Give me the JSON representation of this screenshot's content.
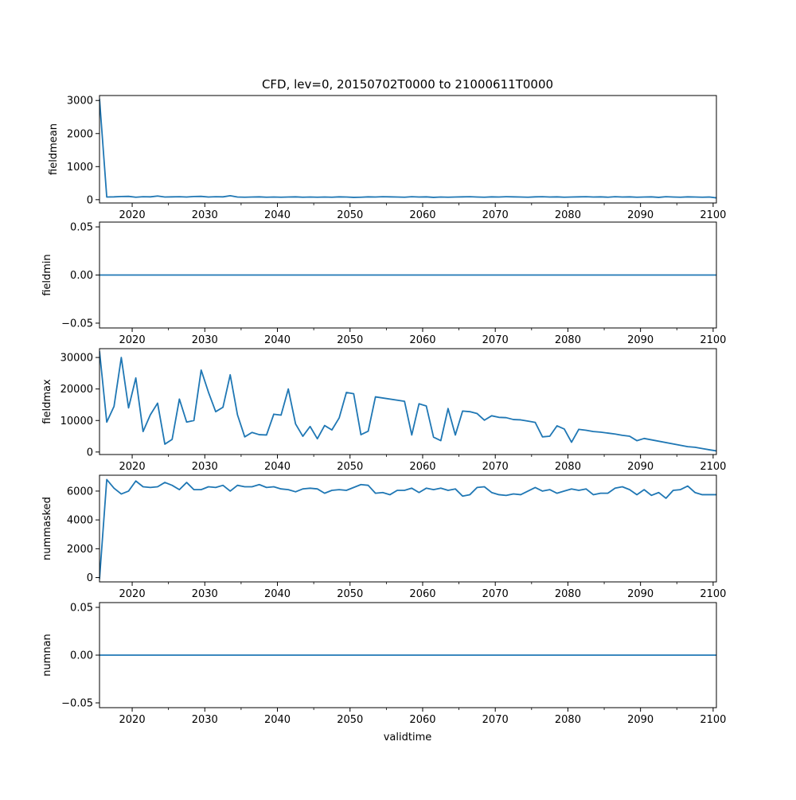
{
  "figure": {
    "title": "CFD, lev=0, 20150702T0000 to 21000611T0000",
    "xlabel": "validtime",
    "line_color": "#1f77b4"
  },
  "chart_data": [
    {
      "type": "line",
      "ylabel": "fieldmean",
      "xlim": [
        2015.5,
        2100.45
      ],
      "ylim": [
        -100,
        3150
      ],
      "xticks": [
        2020,
        2030,
        2040,
        2050,
        2060,
        2070,
        2080,
        2090,
        2100
      ],
      "xtick_labels": [
        "2020",
        "2030",
        "2040",
        "2050",
        "2060",
        "2070",
        "2080",
        "2090",
        "2100"
      ],
      "yticks": [
        0,
        1000,
        2000,
        3000
      ],
      "ytick_labels": [
        "0",
        "1000",
        "2000",
        "3000"
      ],
      "x": [
        2015.5,
        2016.5,
        2017.5,
        2018.5,
        2019.5,
        2020.5,
        2021.5,
        2022.5,
        2023.5,
        2024.5,
        2025.5,
        2026.5,
        2027.5,
        2028.5,
        2029.5,
        2030.5,
        2031.5,
        2032.5,
        2033.5,
        2034.5,
        2035.5,
        2036.5,
        2037.5,
        2038.5,
        2039.5,
        2040.5,
        2041.5,
        2042.5,
        2043.5,
        2044.5,
        2045.5,
        2046.5,
        2047.5,
        2048.5,
        2049.5,
        2050.5,
        2051.5,
        2052.5,
        2053.5,
        2054.5,
        2055.5,
        2056.5,
        2057.5,
        2058.5,
        2059.5,
        2060.5,
        2061.5,
        2062.5,
        2063.5,
        2064.5,
        2065.5,
        2066.5,
        2067.5,
        2068.5,
        2069.5,
        2070.5,
        2071.5,
        2072.5,
        2073.5,
        2074.5,
        2075.5,
        2076.5,
        2077.5,
        2078.5,
        2079.5,
        2080.5,
        2081.5,
        2082.5,
        2083.5,
        2084.5,
        2085.5,
        2086.5,
        2087.5,
        2088.5,
        2089.5,
        2090.5,
        2091.5,
        2092.5,
        2093.5,
        2094.5,
        2095.5,
        2096.5,
        2097.5,
        2098.5,
        2099.5,
        2100.45
      ],
      "y": [
        3050,
        80,
        85,
        95,
        100,
        75,
        90,
        85,
        110,
        80,
        85,
        90,
        80,
        95,
        100,
        80,
        90,
        85,
        120,
        80,
        75,
        80,
        85,
        75,
        80,
        75,
        80,
        85,
        75,
        80,
        75,
        80,
        75,
        85,
        80,
        70,
        75,
        85,
        80,
        90,
        85,
        80,
        75,
        90,
        80,
        85,
        70,
        80,
        75,
        80,
        85,
        90,
        80,
        75,
        85,
        80,
        90,
        85,
        80,
        75,
        85,
        90,
        80,
        85,
        75,
        80,
        85,
        90,
        80,
        85,
        75,
        90,
        80,
        85,
        75,
        80,
        85,
        70,
        90,
        80,
        75,
        85,
        80,
        75,
        80,
        55
      ]
    },
    {
      "type": "line",
      "ylabel": "fieldmin",
      "xlim": [
        2015.5,
        2100.45
      ],
      "ylim": [
        -0.055,
        0.055
      ],
      "xticks": [
        2020,
        2030,
        2040,
        2050,
        2060,
        2070,
        2080,
        2090,
        2100
      ],
      "xtick_labels": [
        "2020",
        "2030",
        "2040",
        "2050",
        "2060",
        "2070",
        "2080",
        "2090",
        "2100"
      ],
      "yticks": [
        -0.05,
        0,
        0.05
      ],
      "ytick_labels": [
        "−0.05",
        "0.00",
        "0.05"
      ],
      "x": [
        2015.5,
        2100.45
      ],
      "y": [
        0,
        0
      ]
    },
    {
      "type": "line",
      "ylabel": "fieldmax",
      "xlim": [
        2015.5,
        2100.45
      ],
      "ylim": [
        -800,
        32800
      ],
      "xticks": [
        2020,
        2030,
        2040,
        2050,
        2060,
        2070,
        2080,
        2090,
        2100
      ],
      "xtick_labels": [
        "2020",
        "2030",
        "2040",
        "2050",
        "2060",
        "2070",
        "2080",
        "2090",
        "2100"
      ],
      "yticks": [
        0,
        10000,
        20000,
        30000
      ],
      "ytick_labels": [
        "0",
        "10000",
        "20000",
        "30000"
      ],
      "x": [
        2015.5,
        2016.5,
        2017.5,
        2018.5,
        2019.5,
        2020.5,
        2021.5,
        2022.5,
        2023.5,
        2024.5,
        2025.5,
        2026.5,
        2027.5,
        2028.5,
        2029.5,
        2030.5,
        2031.5,
        2032.5,
        2033.5,
        2034.5,
        2035.5,
        2036.5,
        2037.5,
        2038.5,
        2039.5,
        2040.5,
        2041.5,
        2042.5,
        2043.5,
        2044.5,
        2045.5,
        2046.5,
        2047.5,
        2048.5,
        2049.5,
        2050.5,
        2051.5,
        2052.5,
        2053.5,
        2057.5,
        2058.5,
        2059.5,
        2060.5,
        2061.5,
        2062.5,
        2063.5,
        2064.5,
        2065.5,
        2066.5,
        2067.5,
        2068.5,
        2069.5,
        2070.5,
        2071.5,
        2072.5,
        2073.5,
        2074.5,
        2075.5,
        2076.5,
        2077.5,
        2078.5,
        2079.5,
        2080.5,
        2081.5,
        2082.5,
        2083.5,
        2084.5,
        2085.5,
        2086.5,
        2087.5,
        2088.5,
        2089.5,
        2090.5,
        2096.5,
        2097.5,
        2098.5,
        2099.5,
        2100.45
      ],
      "y": [
        32000,
        9500,
        14500,
        30000,
        14000,
        23500,
        6500,
        11800,
        15500,
        2500,
        4000,
        16800,
        9500,
        10000,
        26000,
        19000,
        12800,
        14200,
        24500,
        11800,
        4800,
        6200,
        5500,
        5400,
        12000,
        11700,
        20000,
        8900,
        5000,
        8100,
        4200,
        8400,
        7000,
        10800,
        18900,
        18500,
        5500,
        6600,
        17500,
        16100,
        5400,
        15300,
        14600,
        4700,
        3600,
        13800,
        5400,
        13000,
        12800,
        12200,
        10100,
        11500,
        11000,
        10900,
        10300,
        10200,
        9800,
        9400,
        4800,
        5000,
        8300,
        7300,
        3100,
        7200,
        6900,
        6500,
        6300,
        6000,
        5700,
        5300,
        5000,
        3600,
        4300,
        1700,
        1500,
        1100,
        700,
        350
      ]
    },
    {
      "type": "line",
      "ylabel": "nummasked",
      "xlim": [
        2015.5,
        2100.45
      ],
      "ylim": [
        -300,
        7100
      ],
      "xticks": [
        2020,
        2030,
        2040,
        2050,
        2060,
        2070,
        2080,
        2090,
        2100
      ],
      "xtick_labels": [
        "2020",
        "2030",
        "2040",
        "2050",
        "2060",
        "2070",
        "2080",
        "2090",
        "2100"
      ],
      "yticks": [
        0,
        2000,
        4000,
        6000
      ],
      "ytick_labels": [
        "0",
        "2000",
        "4000",
        "6000"
      ],
      "x": [
        2015.5,
        2016.5,
        2017.5,
        2018.5,
        2019.5,
        2020.5,
        2021.5,
        2022.5,
        2023.5,
        2024.5,
        2025.5,
        2026.5,
        2027.5,
        2028.5,
        2029.5,
        2030.5,
        2031.5,
        2032.5,
        2033.5,
        2034.5,
        2035.5,
        2036.5,
        2037.5,
        2038.5,
        2039.5,
        2040.5,
        2041.5,
        2042.5,
        2043.5,
        2044.5,
        2045.5,
        2046.5,
        2047.5,
        2048.5,
        2049.5,
        2050.5,
        2051.5,
        2052.5,
        2053.5,
        2054.5,
        2055.5,
        2056.5,
        2057.5,
        2058.5,
        2059.5,
        2060.5,
        2061.5,
        2062.5,
        2063.5,
        2064.5,
        2065.5,
        2066.5,
        2067.5,
        2068.5,
        2069.5,
        2070.5,
        2071.5,
        2072.5,
        2073.5,
        2074.5,
        2075.5,
        2076.5,
        2077.5,
        2078.5,
        2079.5,
        2080.5,
        2081.5,
        2082.5,
        2083.5,
        2084.5,
        2085.5,
        2086.5,
        2087.5,
        2088.5,
        2089.5,
        2090.5,
        2091.5,
        2092.5,
        2093.5,
        2094.5,
        2095.5,
        2096.5,
        2097.5,
        2098.5,
        2099.5,
        2100.45
      ],
      "y": [
        -100,
        6800,
        6200,
        5800,
        6000,
        6700,
        6300,
        6250,
        6300,
        6600,
        6400,
        6100,
        6600,
        6100,
        6100,
        6300,
        6250,
        6400,
        6000,
        6400,
        6300,
        6300,
        6450,
        6250,
        6300,
        6150,
        6100,
        5950,
        6150,
        6200,
        6150,
        5850,
        6050,
        6100,
        6050,
        6250,
        6450,
        6400,
        5850,
        5900,
        5750,
        6050,
        6050,
        6200,
        5900,
        6200,
        6100,
        6200,
        6050,
        6150,
        5650,
        5750,
        6250,
        6300,
        5900,
        5750,
        5700,
        5800,
        5750,
        6000,
        6250,
        6000,
        6100,
        5850,
        6000,
        6150,
        6050,
        6150,
        5750,
        5850,
        5850,
        6200,
        6300,
        6100,
        5750,
        6100,
        5700,
        5900,
        5500,
        6050,
        6100,
        6350,
        5900,
        5750,
        5750,
        5750
      ]
    },
    {
      "type": "line",
      "ylabel": "numnan",
      "xlim": [
        2015.5,
        2100.45
      ],
      "ylim": [
        -0.055,
        0.055
      ],
      "xticks": [
        2020,
        2030,
        2040,
        2050,
        2060,
        2070,
        2080,
        2090,
        2100
      ],
      "xtick_labels": [
        "2020",
        "2030",
        "2040",
        "2050",
        "2060",
        "2070",
        "2080",
        "2090",
        "2100"
      ],
      "yticks": [
        -0.05,
        0,
        0.05
      ],
      "ytick_labels": [
        "−0.05",
        "0.00",
        "0.05"
      ],
      "x": [
        2015.5,
        2100.45
      ],
      "y": [
        0,
        0
      ]
    }
  ]
}
